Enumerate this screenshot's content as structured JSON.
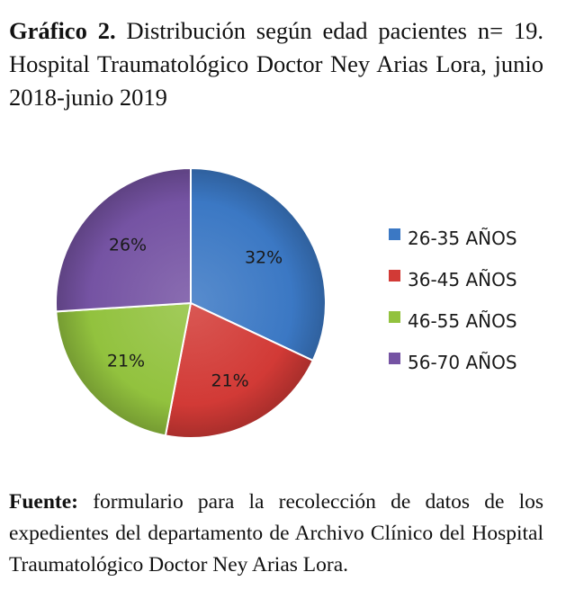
{
  "title": {
    "bold": "Gráfico 2.",
    "text": "Distribución según edad pacientes n= 19. Hospital Traumatológico Doctor Ney Arias Lora, junio 2018-junio 2019"
  },
  "source": {
    "bold": "Fuente:",
    "text": "formulario para la recolección de datos de los expedientes del departamento de Archivo Clínico del Hospital Traumatológico Doctor Ney Arias Lora."
  },
  "chart_data": {
    "type": "pie",
    "categories": [
      "26-35 AÑOS",
      "36-45 AÑOS",
      "46-55 AÑOS",
      "56-70 AÑOS"
    ],
    "values": [
      32,
      21,
      21,
      26
    ],
    "labels": [
      "32%",
      "21%",
      "21%",
      "26%"
    ],
    "colors": [
      "#3b78c4",
      "#d23a36",
      "#92c23e",
      "#7553a3"
    ],
    "legend": "right",
    "grid": false
  }
}
